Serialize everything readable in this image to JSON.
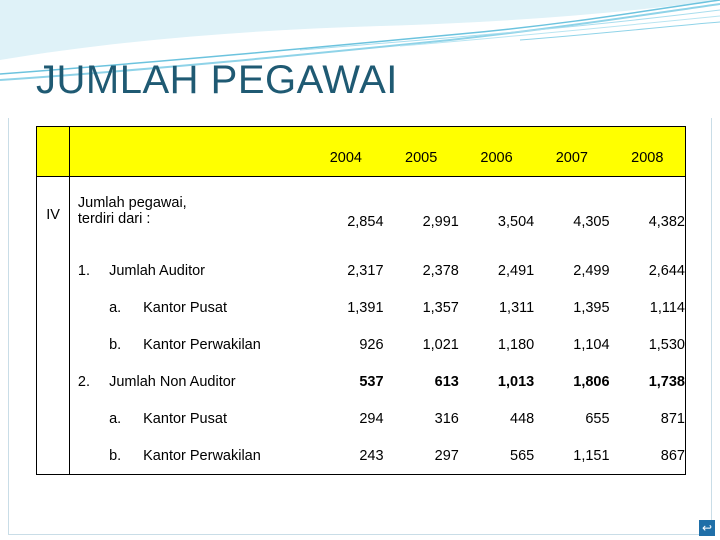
{
  "title": "JUMLAH PEGAWAI",
  "table": {
    "years": [
      "2004",
      "2005",
      "2006",
      "2007",
      "2008"
    ],
    "section_no": "IV",
    "section_label_line1": "Jumlah pegawai,",
    "section_label_line2": "terdiri dari :",
    "section_values": [
      "2,854",
      "2,991",
      "3,504",
      "4,305",
      "4,382"
    ],
    "groups": [
      {
        "no": "1.",
        "label": "Jumlah Auditor",
        "values": [
          "2,317",
          "2,378",
          "2,491",
          "2,499",
          "2,644"
        ],
        "items": [
          {
            "letter": "a.",
            "label": "Kantor Pusat",
            "values": [
              "1,391",
              "1,357",
              "1,311",
              "1,395",
              "1,114"
            ]
          },
          {
            "letter": "b.",
            "label": "Kantor Perwakilan",
            "values": [
              "926",
              "1,021",
              "1,180",
              "1,104",
              "1,530"
            ]
          }
        ]
      },
      {
        "no": "2.",
        "label": "Jumlah Non Auditor",
        "values": [
          "537",
          "613",
          "1,013",
          "1,806",
          "1,738"
        ],
        "items": [
          {
            "letter": "a.",
            "label": "Kantor Pusat",
            "values": [
              "294",
              "316",
              "448",
              "655",
              "871"
            ]
          },
          {
            "letter": "b.",
            "label": "Kantor Perwakilan",
            "values": [
              "243",
              "297",
              "565",
              "1,151",
              "867"
            ]
          }
        ]
      }
    ]
  },
  "colors": {
    "header_fill": "#ffff00",
    "title": "#1f5a73",
    "swoosh": "#8fd3e8"
  },
  "nav_icon": "return-icon"
}
